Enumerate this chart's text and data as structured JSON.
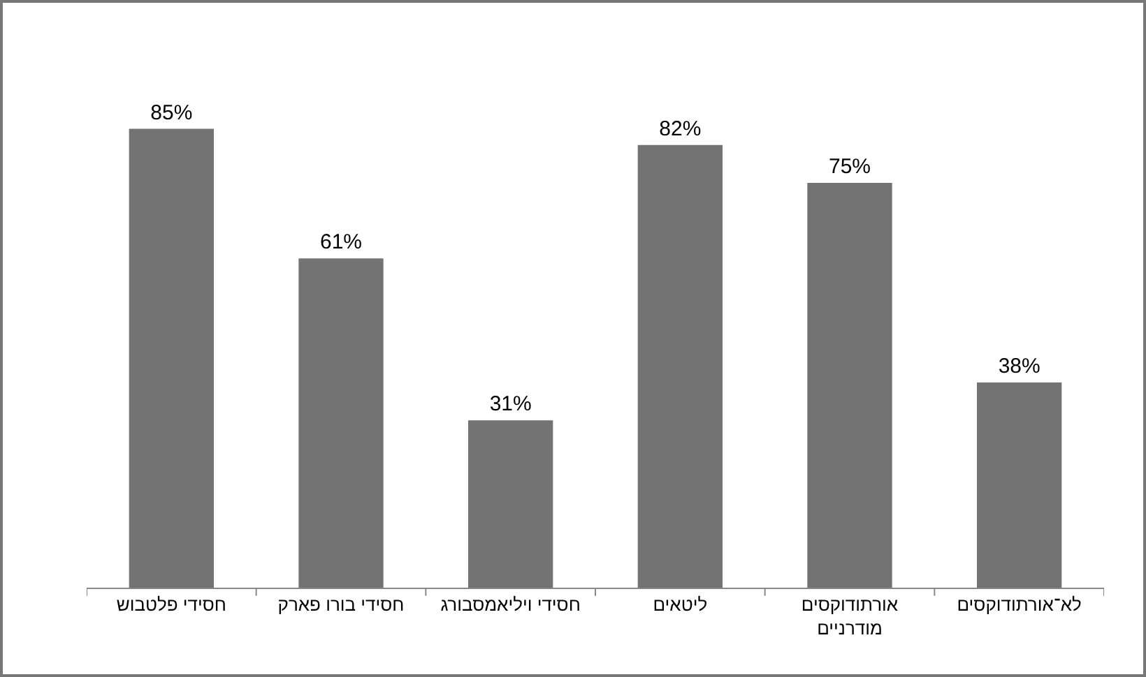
{
  "chart_data": {
    "type": "bar",
    "categories": [
      "חסידי פלטבוש",
      "חסידי בורו פארק",
      "חסידי ויליאמסבורג",
      "ליטאים",
      "אורתודוקסים מודרניים",
      "לא־אורתודוקסים"
    ],
    "values": [
      85,
      61,
      31,
      82,
      75,
      38
    ],
    "value_labels": [
      "85%",
      "61%",
      "31%",
      "82%",
      "75%",
      "38%"
    ],
    "color": "#737373"
  }
}
